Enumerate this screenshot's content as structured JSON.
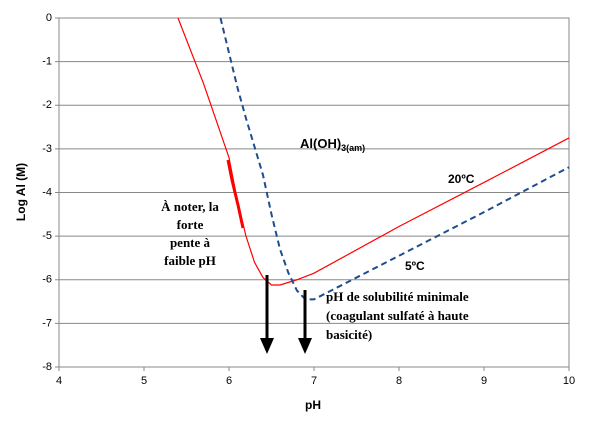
{
  "chart_data": {
    "type": "line",
    "xlabel": "pH",
    "ylabel": "Log Al (M)",
    "xlim": [
      4,
      10
    ],
    "xticks": [
      4,
      5,
      6,
      7,
      8,
      9,
      10
    ],
    "ylim": [
      -8,
      0
    ],
    "yticks": [
      0,
      -1,
      -2,
      -3,
      -4,
      -5,
      -6,
      -7,
      -8
    ],
    "grid": true,
    "series": [
      {
        "name": "20ºC",
        "color": "#ff0000",
        "dashed": false,
        "x": [
          5.4,
          5.7,
          6.0,
          6.1,
          6.2,
          6.3,
          6.4,
          6.5,
          6.6,
          6.8,
          7.0,
          8.0,
          9.0,
          10.0
        ],
        "values": [
          0,
          -1.5,
          -3.2,
          -4.2,
          -5.0,
          -5.6,
          -5.95,
          -6.12,
          -6.12,
          -6.0,
          -5.85,
          -4.78,
          -3.77,
          -2.75
        ]
      },
      {
        "name": "5ºC",
        "color": "#1f4e8c",
        "dashed": true,
        "x": [
          5.9,
          6.0,
          6.1,
          6.2,
          6.3,
          6.4,
          6.5,
          6.6,
          6.7,
          6.8,
          6.9,
          7.0,
          8.0,
          9.0,
          10.0
        ],
        "values": [
          0,
          -0.8,
          -1.6,
          -2.3,
          -2.95,
          -3.6,
          -4.5,
          -5.3,
          -5.85,
          -6.25,
          -6.45,
          -6.45,
          -5.45,
          -4.45,
          -3.42
        ]
      }
    ],
    "annotations": [
      {
        "main": "Al(OH)",
        "sub": "3(am)"
      },
      {
        "lines": [
          "À noter, la",
          "forte",
          "pente à",
          "faible pH"
        ]
      },
      {
        "lines": [
          "pH de solubilité minimale",
          "(coagulant sulfaté à haute",
          "basicité)"
        ]
      }
    ]
  }
}
